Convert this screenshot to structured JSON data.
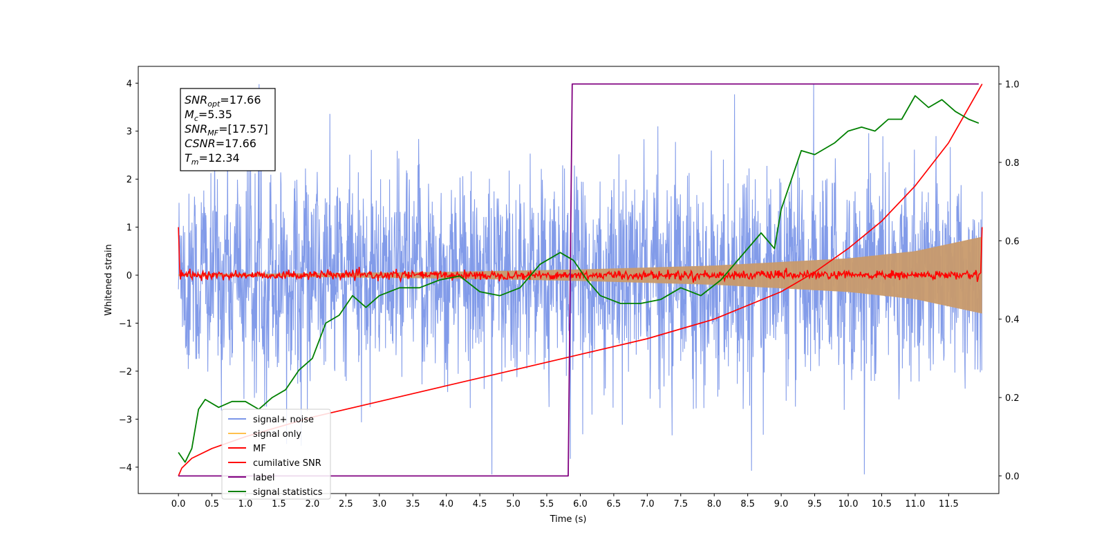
{
  "chart_data": {
    "type": "line",
    "xlabel": "Time (s)",
    "ylabel": "Whitened strain",
    "xlim": [
      -0.6,
      12.25
    ],
    "ylim": [
      -4.55,
      4.35
    ],
    "y2lim": [
      -0.045,
      1.045
    ],
    "x_ticks": [
      "0.0",
      "0.5",
      "1.0",
      "1.5",
      "2.0",
      "2.5",
      "3.0",
      "3.5",
      "4.0",
      "4.5",
      "5.0",
      "5.5",
      "6.0",
      "6.5",
      "7.0",
      "7.5",
      "8.0",
      "8.5",
      "9.0",
      "9.5",
      "10.0",
      "10.5",
      "11.0",
      "11.5"
    ],
    "y_ticks": [
      "4",
      "3",
      "2",
      "1",
      "0",
      "−1",
      "−2",
      "−3",
      "−4"
    ],
    "y2_ticks": [
      "1.0",
      "0.8",
      "0.6",
      "0.4",
      "0.2",
      "0.0"
    ],
    "legend": {
      "placement": "lower-left",
      "entries": [
        {
          "label": "signal+ noise",
          "color": "#7b96e8"
        },
        {
          "label": "signal only",
          "color": "#ffc04d"
        },
        {
          "label": "MF",
          "color": "#ff0000"
        },
        {
          "label": "cumilative SNR",
          "color": "#ff0000"
        },
        {
          "label": "label",
          "color": "#800080"
        },
        {
          "label": "signal statistics",
          "color": "#008000"
        }
      ]
    },
    "annotation": {
      "snr_opt": {
        "sym": "SNR",
        "sub": "opt",
        "val": "=17.66"
      },
      "mc": {
        "sym": "M",
        "sub": "c",
        "val": "=5.35"
      },
      "snr_mf": {
        "sym": "SNR",
        "sub": "MF",
        "val": "=[17.57]"
      },
      "csnr": {
        "sym": "CSNR",
        "sub": "",
        "val": "=17.66"
      },
      "tm": {
        "sym": "T",
        "sub": "m",
        "val": "=12.34"
      }
    },
    "series": [
      {
        "name": "signal+ noise",
        "axis": "left",
        "color": "#7b96e8",
        "description_values": {
          "x_range": [
            0,
            12
          ],
          "amplitude_range": [
            -4.15,
            3.98
          ]
        }
      },
      {
        "name": "signal only",
        "axis": "left",
        "color": "#c89a6c",
        "x": [
          0,
          2,
          4,
          6,
          8,
          10,
          11,
          12
        ],
        "envelope": [
          0.02,
          0.04,
          0.07,
          0.12,
          0.2,
          0.35,
          0.5,
          0.8
        ]
      },
      {
        "name": "MF",
        "axis": "left",
        "color": "#ff0000",
        "description_values": {
          "baseline": 0.0,
          "start": 1.0,
          "end": 1.0
        }
      },
      {
        "name": "cumilative SNR",
        "axis": "right",
        "color": "#ff0000",
        "x": [
          0.0,
          0.05,
          0.2,
          0.5,
          1.0,
          2.0,
          3.0,
          4.0,
          5.0,
          6.0,
          7.0,
          8.0,
          9.0,
          9.5,
          10.0,
          10.5,
          11.0,
          11.5,
          12.0
        ],
        "y": [
          0.0,
          0.02,
          0.045,
          0.07,
          0.1,
          0.15,
          0.19,
          0.23,
          0.27,
          0.31,
          0.35,
          0.4,
          0.47,
          0.52,
          0.58,
          0.65,
          0.74,
          0.85,
          1.0
        ]
      },
      {
        "name": "label",
        "axis": "right",
        "color": "#800080",
        "x": [
          0.0,
          5.82,
          5.88,
          11.95
        ],
        "y": [
          0.0,
          0.0,
          1.0,
          1.0
        ]
      },
      {
        "name": "signal statistics",
        "axis": "right",
        "color": "#008000",
        "x": [
          0.0,
          0.1,
          0.2,
          0.3,
          0.4,
          0.6,
          0.8,
          1.0,
          1.2,
          1.4,
          1.6,
          1.8,
          2.0,
          2.2,
          2.4,
          2.6,
          2.8,
          3.0,
          3.3,
          3.6,
          3.9,
          4.2,
          4.5,
          4.8,
          5.1,
          5.4,
          5.7,
          5.9,
          6.1,
          6.3,
          6.6,
          6.9,
          7.2,
          7.5,
          7.8,
          8.1,
          8.4,
          8.7,
          8.9,
          9.0,
          9.1,
          9.2,
          9.3,
          9.5,
          9.8,
          10.0,
          10.2,
          10.4,
          10.6,
          10.8,
          11.0,
          11.2,
          11.4,
          11.6,
          11.8,
          11.95
        ],
        "y": [
          0.06,
          0.035,
          0.07,
          0.17,
          0.195,
          0.175,
          0.19,
          0.19,
          0.17,
          0.2,
          0.22,
          0.27,
          0.3,
          0.39,
          0.41,
          0.46,
          0.43,
          0.46,
          0.48,
          0.48,
          0.5,
          0.51,
          0.47,
          0.46,
          0.48,
          0.54,
          0.57,
          0.55,
          0.5,
          0.46,
          0.44,
          0.44,
          0.45,
          0.48,
          0.46,
          0.5,
          0.56,
          0.62,
          0.58,
          0.68,
          0.73,
          0.78,
          0.83,
          0.82,
          0.85,
          0.88,
          0.89,
          0.88,
          0.91,
          0.91,
          0.97,
          0.94,
          0.96,
          0.93,
          0.91,
          0.9
        ]
      }
    ]
  }
}
